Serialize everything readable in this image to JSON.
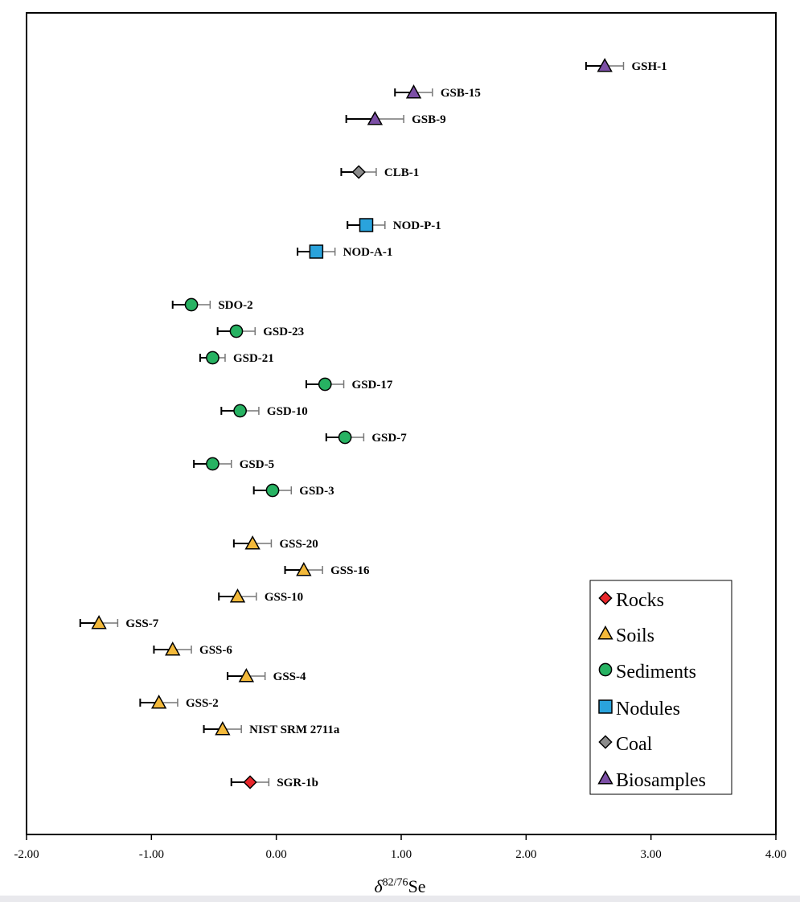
{
  "chart_data": {
    "type": "scatter",
    "xlabel": {
      "prefix": "δ",
      "sup": "82/76",
      "suffix": "Se"
    },
    "xlim": [
      -2.0,
      4.0
    ],
    "xticks": [
      -2.0,
      -1.0,
      0.0,
      1.0,
      2.0,
      3.0,
      4.0
    ],
    "xtick_labels": [
      "-2.00",
      "-1.00",
      "0.00",
      "1.00",
      "2.00",
      "3.00",
      "4.00"
    ],
    "grid": false,
    "legend_position": "bottom-right",
    "legend": [
      {
        "name": "Rocks",
        "marker": "diamond",
        "color": "#e8262b"
      },
      {
        "name": "Soils",
        "marker": "triangle",
        "color": "#f3b93a"
      },
      {
        "name": "Sediments",
        "marker": "circle",
        "color": "#27b262"
      },
      {
        "name": "Nodules",
        "marker": "square",
        "color": "#2aa3dc"
      },
      {
        "name": "Coal",
        "marker": "diamond",
        "color": "#8b8b8b"
      },
      {
        "name": "Biosamples",
        "marker": "triangle",
        "color": "#7c4fa6"
      }
    ],
    "points": [
      {
        "label": "GSH-1",
        "group": "Biosamples",
        "x": 2.63,
        "err": 0.15
      },
      {
        "label": "GSB-15",
        "group": "Biosamples",
        "x": 1.1,
        "err": 0.15
      },
      {
        "label": "GSB-9",
        "group": "Biosamples",
        "x": 0.79,
        "err": 0.23
      },
      {
        "label": "CLB-1",
        "group": "Coal",
        "x": 0.66,
        "err": 0.14
      },
      {
        "label": "NOD-P-1",
        "group": "Nodules",
        "x": 0.72,
        "err": 0.15
      },
      {
        "label": "NOD-A-1",
        "group": "Nodules",
        "x": 0.32,
        "err": 0.15
      },
      {
        "label": "SDO-2",
        "group": "Sediments",
        "x": -0.68,
        "err": 0.15
      },
      {
        "label": "GSD-23",
        "group": "Sediments",
        "x": -0.32,
        "err": 0.15
      },
      {
        "label": "GSD-21",
        "group": "Sediments",
        "x": -0.51,
        "err": 0.1
      },
      {
        "label": "GSD-17",
        "group": "Sediments",
        "x": 0.39,
        "err": 0.15
      },
      {
        "label": "GSD-10",
        "group": "Sediments",
        "x": -0.29,
        "err": 0.15
      },
      {
        "label": "GSD-7",
        "group": "Sediments",
        "x": 0.55,
        "err": 0.15
      },
      {
        "label": "GSD-5",
        "group": "Sediments",
        "x": -0.51,
        "err": 0.15
      },
      {
        "label": "GSD-3",
        "group": "Sediments",
        "x": -0.03,
        "err": 0.15
      },
      {
        "label": "GSS-20",
        "group": "Soils",
        "x": -0.19,
        "err": 0.15
      },
      {
        "label": "GSS-16",
        "group": "Soils",
        "x": 0.22,
        "err": 0.15
      },
      {
        "label": "GSS-10",
        "group": "Soils",
        "x": -0.31,
        "err": 0.15
      },
      {
        "label": "GSS-7",
        "group": "Soils",
        "x": -1.42,
        "err": 0.15
      },
      {
        "label": "GSS-6",
        "group": "Soils",
        "x": -0.83,
        "err": 0.15
      },
      {
        "label": "GSS-4",
        "group": "Soils",
        "x": -0.24,
        "err": 0.15
      },
      {
        "label": "GSS-2",
        "group": "Soils",
        "x": -0.94,
        "err": 0.15
      },
      {
        "label": "NIST SRM 2711a",
        "group": "Soils",
        "x": -0.43,
        "err": 0.15
      },
      {
        "label": "SGR-1b",
        "group": "Rocks",
        "x": -0.21,
        "err": 0.15
      }
    ]
  }
}
